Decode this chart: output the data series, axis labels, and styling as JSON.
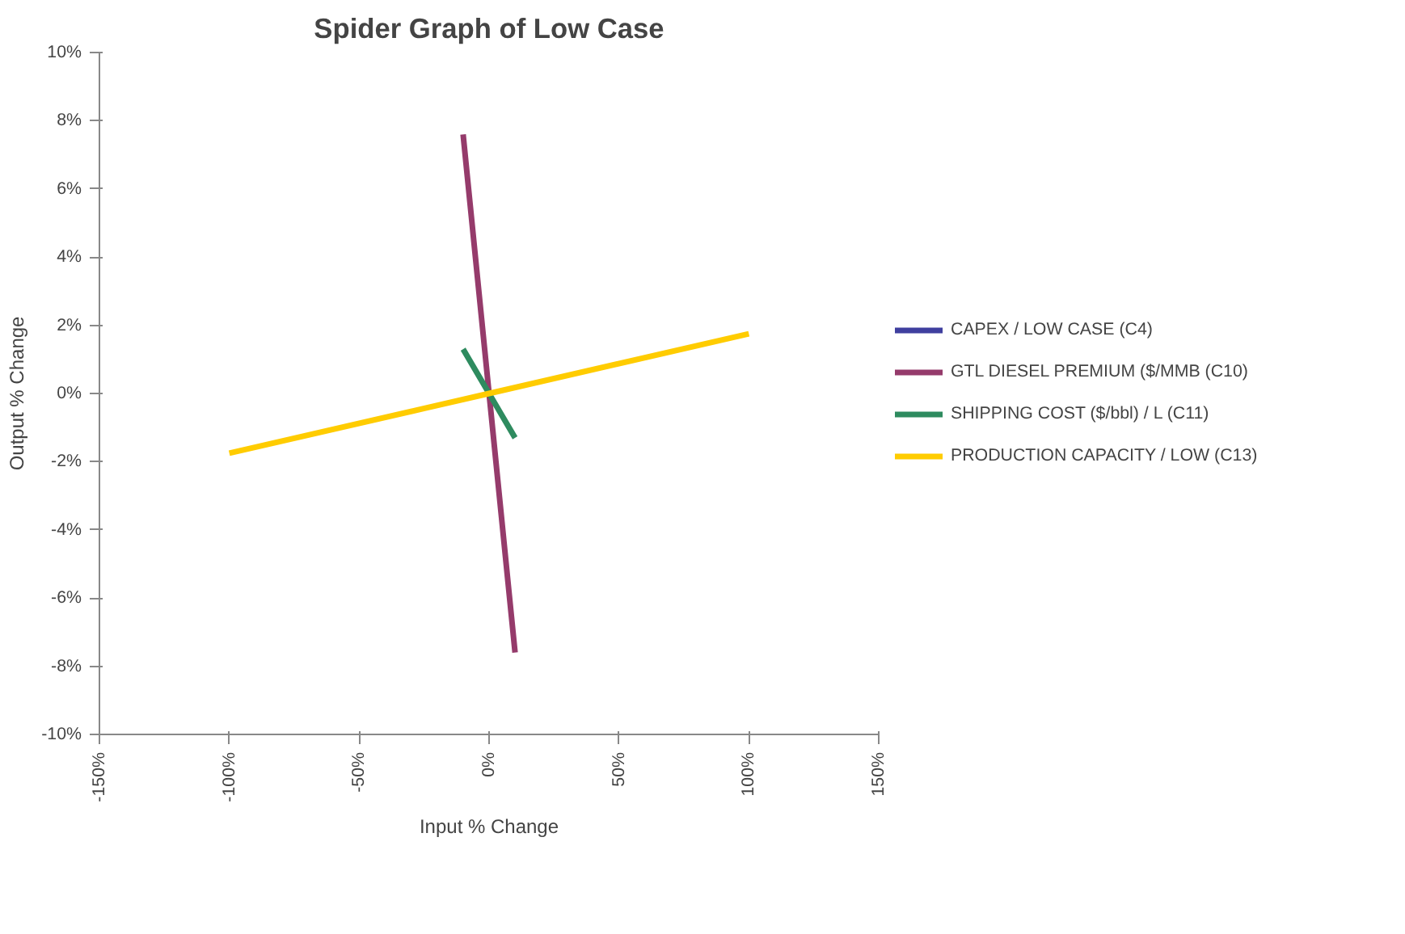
{
  "chart_data": {
    "type": "line",
    "title": "Spider Graph of Low Case",
    "xlabel": "Input % Change",
    "ylabel": "Output % Change",
    "xlim": [
      -150,
      150
    ],
    "ylim": [
      -10,
      10
    ],
    "xticks": [
      {
        "value": -150,
        "label": "-150%"
      },
      {
        "value": -100,
        "label": "-100%"
      },
      {
        "value": -50,
        "label": "-50%"
      },
      {
        "value": 0,
        "label": "0%"
      },
      {
        "value": 50,
        "label": "50%"
      },
      {
        "value": 100,
        "label": "100%"
      },
      {
        "value": 150,
        "label": "150%"
      }
    ],
    "yticks": [
      {
        "value": -10,
        "label": "-10%"
      },
      {
        "value": -8,
        "label": "-8%"
      },
      {
        "value": -6,
        "label": "-6%"
      },
      {
        "value": -4,
        "label": "-4%"
      },
      {
        "value": -2,
        "label": "-2%"
      },
      {
        "value": 0,
        "label": "0%"
      },
      {
        "value": 2,
        "label": "2%"
      },
      {
        "value": 4,
        "label": "4%"
      },
      {
        "value": 6,
        "label": "6%"
      },
      {
        "value": 8,
        "label": "8%"
      },
      {
        "value": 10,
        "label": "10%"
      }
    ],
    "grid": false,
    "legend": "right",
    "marker": "none",
    "line_style": "solid",
    "series": [
      {
        "name": "CAPEX / LOW CASE (C4)",
        "color": "#3f3f9f"
      },
      {
        "name": "GTL DIESEL PREMIUM ($/MMB (C10)",
        "color": "#953b6b",
        "x": [
          -10,
          0,
          10
        ],
        "values": [
          7.6,
          0,
          -7.6
        ]
      },
      {
        "name": "SHIPPING COST ($/bbl) / L (C11)",
        "color": "#2e8b5f",
        "x": [
          -10,
          0,
          10
        ],
        "values": [
          1.3,
          0,
          -1.3
        ]
      },
      {
        "name": "PRODUCTION CAPACITY / LOW (C13)",
        "color": "#ffcc00",
        "x": [
          -100,
          0,
          100
        ],
        "values": [
          -1.75,
          0,
          1.75
        ]
      }
    ]
  }
}
